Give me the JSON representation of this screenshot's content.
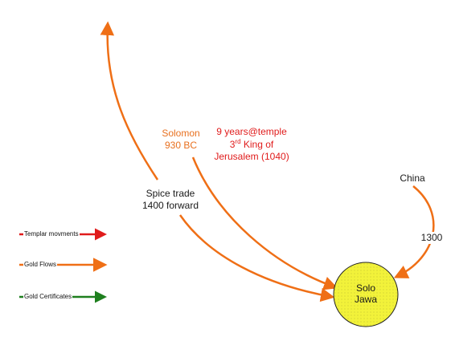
{
  "colors": {
    "orange": "#EF6F16",
    "red": "#E01B1B",
    "green": "#1E7F1E",
    "node_fill": "#F2F23A",
    "node_stroke": "#222222"
  },
  "labels": {
    "spice_trade": "Spice trade",
    "spice_trade_years": "1400 forward",
    "solomon": "Solomon",
    "solomon_date": "930 BC",
    "temple_line1": "9 years@temple",
    "temple_ord": "3",
    "temple_sup": "rd",
    "temple_line2_rest": " King of",
    "temple_line3": "Jerusalem (1040)",
    "china": "China",
    "china_year": "1300"
  },
  "node": {
    "line1": "Solo",
    "line2": "Jawa"
  },
  "legend": {
    "items": [
      {
        "label": "Templar movments",
        "color": "#E01B1B"
      },
      {
        "label": "Gold Flows",
        "color": "#EF6F16"
      },
      {
        "label": "Gold Certificates",
        "color": "#1E7F1E"
      }
    ]
  }
}
